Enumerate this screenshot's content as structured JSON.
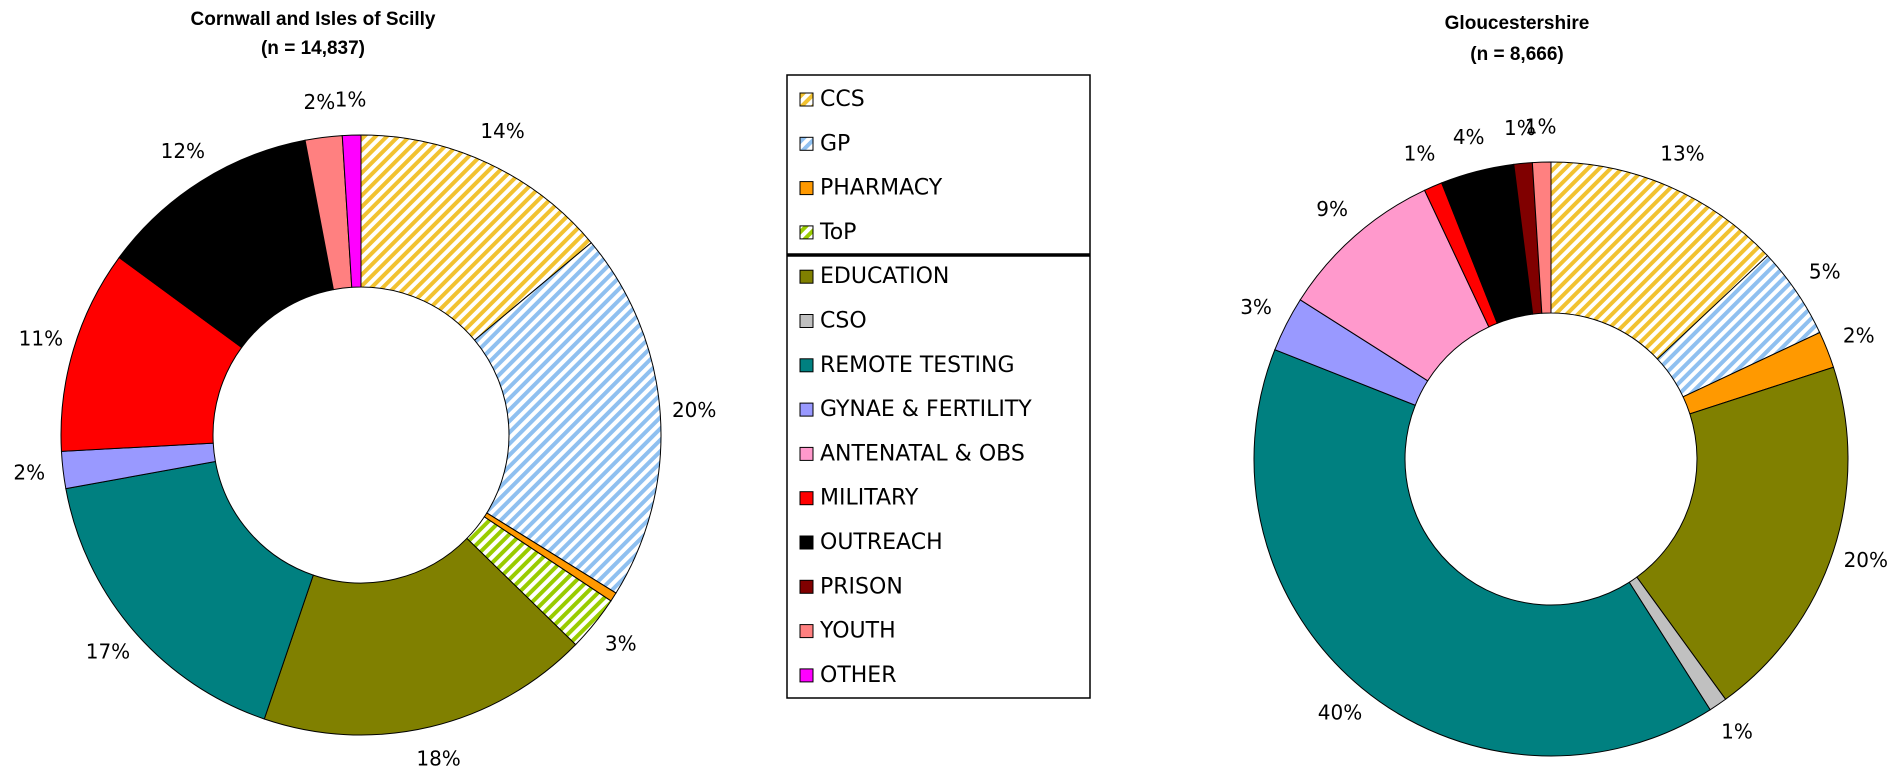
{
  "legend": {
    "categories": [
      "CCS",
      "GP",
      "PHARMACY",
      "ToP",
      "EDUCATION",
      "CSO",
      "REMOTE TESTING",
      "GYNAE & FERTILITY",
      "ANTENATAL & OBS",
      "MILITARY",
      "OUTREACH",
      "PRISON",
      "YOUTH",
      "OTHER"
    ],
    "colors": [
      "#f2c230",
      "#8fc0f0",
      "#ff9900",
      "#99cc00",
      "#808000",
      "#c0c0c0",
      "#008080",
      "#9999ff",
      "#ff99cc",
      "#ff0000",
      "#000000",
      "#800000",
      "#ff8080",
      "#ff00ff"
    ],
    "hatched": [
      true,
      true,
      false,
      true,
      false,
      false,
      false,
      false,
      false,
      false,
      false,
      false,
      false,
      false
    ]
  },
  "chart_data": [
    {
      "type": "donut",
      "title": "Cornwall and Isles of Scilly",
      "subtitle": "(n = 14,837)",
      "values": [
        14,
        20,
        0.5,
        3,
        18,
        null,
        17,
        2,
        null,
        11,
        12,
        null,
        2,
        1
      ],
      "value_labels": [
        "14%",
        "20%",
        null,
        "3%",
        "18%",
        null,
        "17%",
        "2%",
        null,
        "11%",
        "12%",
        null,
        "2%",
        "1%"
      ]
    },
    {
      "type": "donut",
      "title": "Gloucestershire",
      "subtitle": "(n = 8,666)",
      "values": [
        13,
        5,
        2,
        null,
        20,
        1,
        40,
        3,
        9,
        1,
        4,
        1,
        1,
        null
      ],
      "value_labels": [
        "13%",
        "5%",
        "2%",
        null,
        "20%",
        "1%",
        "40%",
        "3%",
        "9%",
        "1%",
        "4%",
        "1%",
        "1%",
        null
      ]
    }
  ]
}
